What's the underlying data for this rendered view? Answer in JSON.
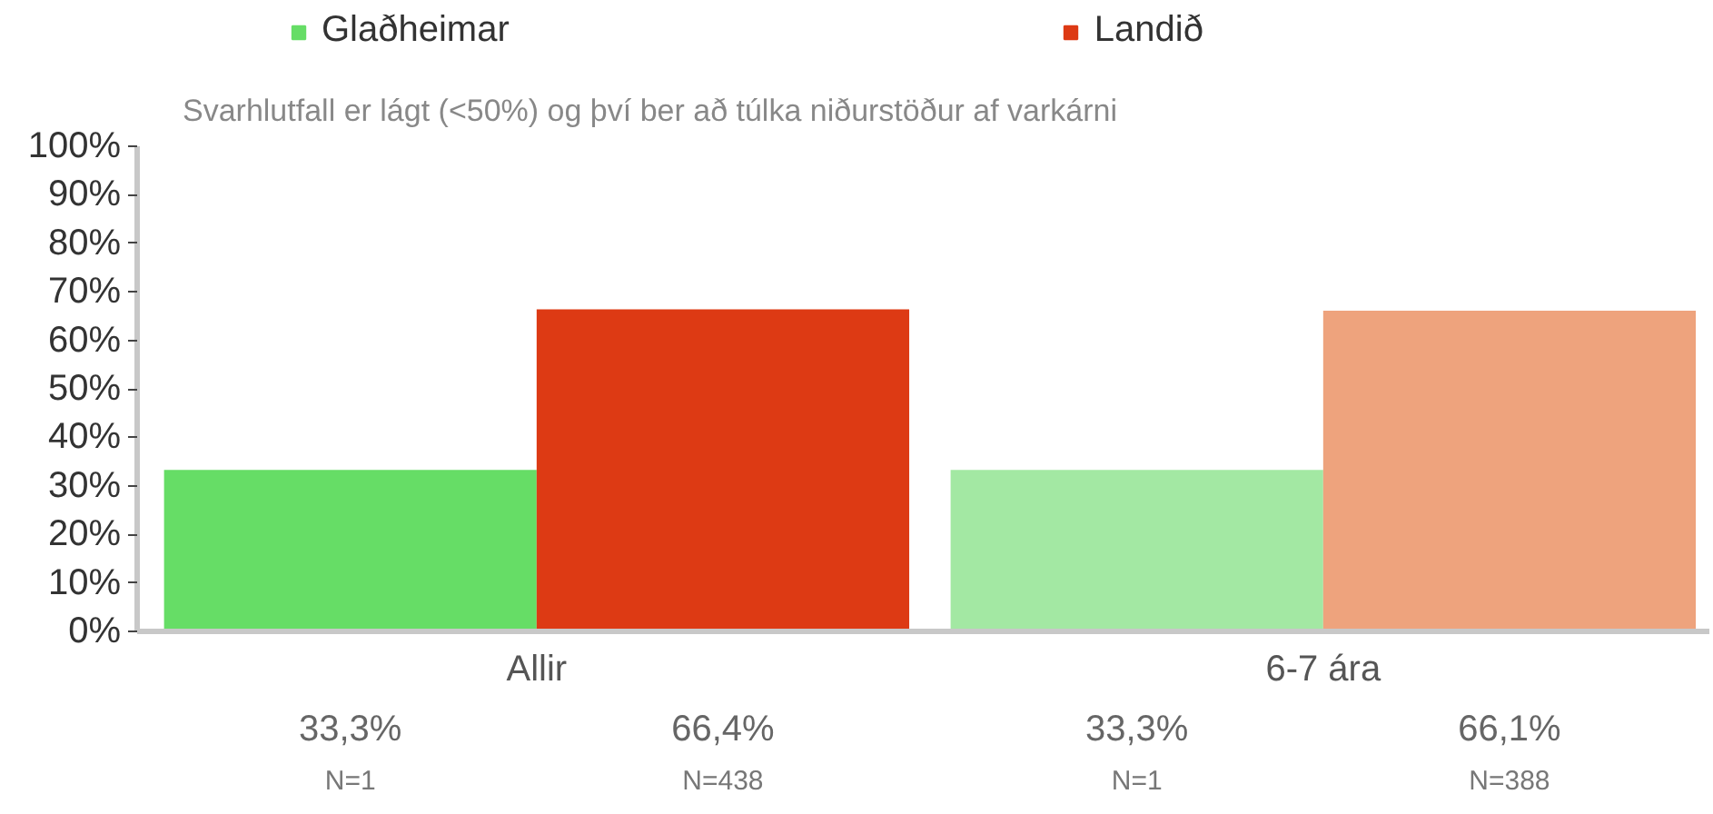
{
  "chart_data": {
    "type": "bar",
    "subtitle": "Svarhlutfall er lágt (<50%) og því ber að túlka niðurstöður af varkárni",
    "categories": [
      "Allir",
      "6-7 ára"
    ],
    "series": [
      {
        "name": "Glaðheimar",
        "color": "#66dd66",
        "colors": [
          "#66dd66",
          "#a3e8a3"
        ],
        "values": [
          33.3,
          33.3
        ],
        "value_labels": [
          "33,3%",
          "33,3%"
        ]
      },
      {
        "name": "Landið",
        "color": "#dd3a14",
        "colors": [
          "#dd3a14",
          "#eea37d"
        ],
        "values": [
          66.4,
          66.1
        ],
        "value_labels": [
          "66,4%",
          "66,1%"
        ]
      }
    ],
    "annotations": [
      "N=1",
      "N=438",
      "N=1",
      "N=388"
    ],
    "ylim": [
      0,
      100
    ],
    "yticks": [
      {
        "value": 0,
        "label": "0%"
      },
      {
        "value": 10,
        "label": "10%"
      },
      {
        "value": 20,
        "label": "20%"
      },
      {
        "value": 30,
        "label": "30%"
      },
      {
        "value": 40,
        "label": "40%"
      },
      {
        "value": 50,
        "label": "50%"
      },
      {
        "value": 60,
        "label": "60%"
      },
      {
        "value": 70,
        "label": "70%"
      },
      {
        "value": 80,
        "label": "80%"
      },
      {
        "value": 90,
        "label": "90%"
      },
      {
        "value": 100,
        "label": "100%"
      }
    ],
    "grid": false,
    "legend": "top left"
  }
}
